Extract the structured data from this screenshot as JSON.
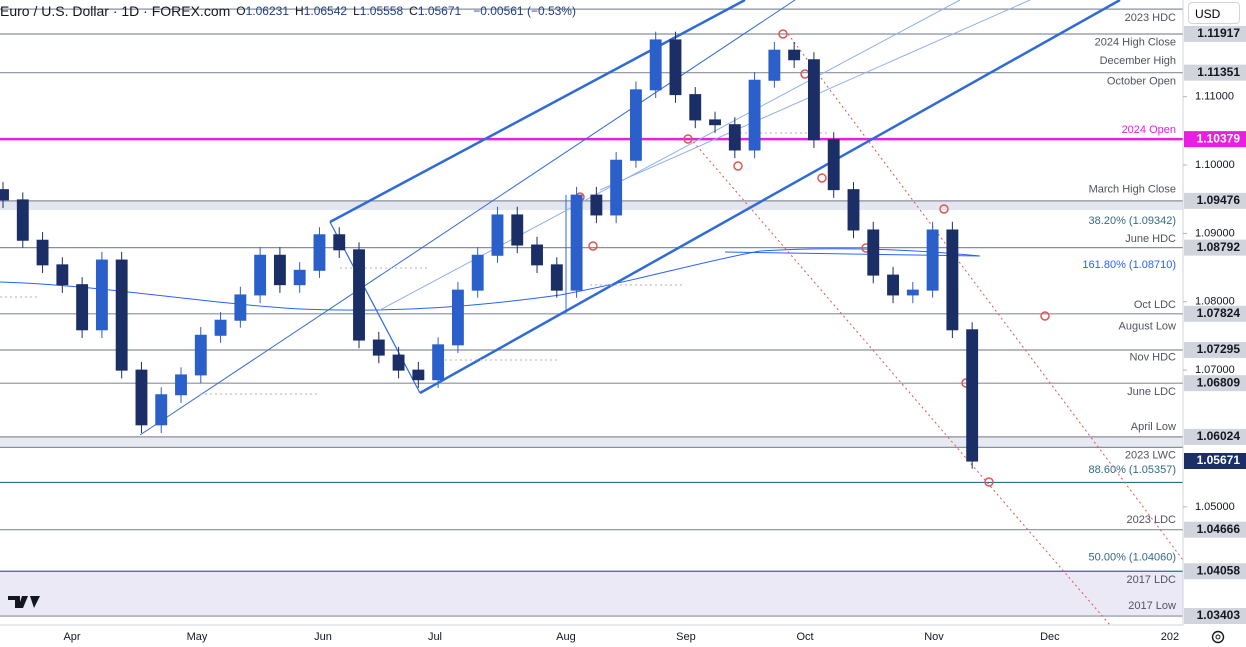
{
  "chart_data": {
    "type": "candlestick",
    "header": {
      "symbol": "Euro / U.S. Dollar · 1D · FOREX.com",
      "ohlc": [
        {
          "label": "O",
          "value": 1.06231
        },
        {
          "label": "H",
          "value": 1.06542
        },
        {
          "label": "L",
          "value": 1.05558
        },
        {
          "label": "C",
          "value": 1.05671
        }
      ],
      "change": "−0.00561 (−0.53%)",
      "currency": "USD"
    },
    "up_color": "#2b5fc9",
    "down_color": "#1b2e66",
    "ohlc": [
      [
        1.0964,
        1.0975,
        1.0937,
        1.0949
      ],
      [
        1.0949,
        1.096,
        1.0879,
        1.089
      ],
      [
        1.089,
        1.0902,
        1.0842,
        1.0854
      ],
      [
        1.0854,
        1.0865,
        1.0813,
        1.0825
      ],
      [
        1.0825,
        1.0836,
        1.0747,
        1.0759
      ],
      [
        1.0759,
        1.0873,
        1.0747,
        1.0861
      ],
      [
        1.0861,
        1.0873,
        1.0688,
        1.07
      ],
      [
        1.07,
        1.0712,
        1.0608,
        1.062
      ],
      [
        1.062,
        1.0675,
        1.0608,
        1.0664
      ],
      [
        1.0664,
        1.0704,
        1.0652,
        1.0693
      ],
      [
        1.0693,
        1.0763,
        1.0681,
        1.0751
      ],
      [
        1.0751,
        1.0785,
        1.074,
        1.0773
      ],
      [
        1.0773,
        1.0822,
        1.0762,
        1.081
      ],
      [
        1.081,
        1.088,
        1.0798,
        1.0868
      ],
      [
        1.0868,
        1.088,
        1.0813,
        1.0825
      ],
      [
        1.0825,
        1.0858,
        1.0813,
        1.0846
      ],
      [
        1.0846,
        1.0909,
        1.0835,
        1.0898
      ],
      [
        1.0898,
        1.0909,
        1.0864,
        1.0876
      ],
      [
        1.0876,
        1.0887,
        1.0732,
        1.0744
      ],
      [
        1.0744,
        1.0756,
        1.071,
        1.0722
      ],
      [
        1.0722,
        1.0734,
        1.0688,
        1.07
      ],
      [
        1.07,
        1.0712,
        1.0674,
        1.0686
      ],
      [
        1.0686,
        1.0748,
        1.0674,
        1.0737
      ],
      [
        1.0737,
        1.0829,
        1.0725,
        1.0817
      ],
      [
        1.0817,
        1.088,
        1.0806,
        1.0868
      ],
      [
        1.0868,
        1.0939,
        1.0857,
        1.0927
      ],
      [
        1.0927,
        1.0939,
        1.0871,
        1.0883
      ],
      [
        1.0883,
        1.0895,
        1.0842,
        1.0854
      ],
      [
        1.0854,
        1.0865,
        1.0806,
        1.0817
      ],
      [
        1.0817,
        1.0968,
        1.0806,
        1.0956
      ],
      [
        1.0956,
        1.0968,
        1.0915,
        1.0927
      ],
      [
        1.0927,
        1.1019,
        1.0915,
        1.1007
      ],
      [
        1.1007,
        1.1122,
        1.0996,
        1.111
      ],
      [
        1.111,
        1.1195,
        1.1098,
        1.1183
      ],
      [
        1.1183,
        1.1195,
        1.1091,
        1.1103
      ],
      [
        1.1103,
        1.1114,
        1.1054,
        1.1066
      ],
      [
        1.1066,
        1.1078,
        1.1047,
        1.1059
      ],
      [
        1.1059,
        1.107,
        1.101,
        1.1022
      ],
      [
        1.1022,
        1.1136,
        1.101,
        1.1124
      ],
      [
        1.1124,
        1.118,
        1.1113,
        1.1168
      ],
      [
        1.1168,
        1.118,
        1.1142,
        1.1154
      ],
      [
        1.1154,
        1.1165,
        1.1025,
        1.1037
      ],
      [
        1.1037,
        1.1048,
        1.0952,
        1.0964
      ],
      [
        1.0964,
        1.0975,
        1.0893,
        1.0905
      ],
      [
        1.0905,
        1.0917,
        1.0827,
        1.0839
      ],
      [
        1.0839,
        1.0851,
        1.0798,
        1.081
      ],
      [
        1.081,
        1.0829,
        1.0798,
        1.0817
      ],
      [
        1.0817,
        1.0917,
        1.0806,
        1.0905
      ],
      [
        1.0905,
        1.0917,
        1.0747,
        1.0759
      ],
      [
        1.0759,
        1.077,
        1.0556,
        1.0567
      ]
    ],
    "xlim": [
      -0.152,
      59.66
    ],
    "xticks": [
      {
        "value": 3.49,
        "label": "Apr"
      },
      {
        "value": 9.81,
        "label": "May"
      },
      {
        "value": 16.18,
        "label": "Jun"
      },
      {
        "value": 21.84,
        "label": "Jul"
      },
      {
        "value": 28.46,
        "label": "Aug"
      },
      {
        "value": 34.53,
        "label": "Sep"
      },
      {
        "value": 40.55,
        "label": "Oct"
      },
      {
        "value": 47.07,
        "label": "Nov"
      },
      {
        "value": 52.93,
        "label": "Dec"
      },
      {
        "value": 59.0,
        "label": "202"
      }
    ],
    "ylim": [
      1.03272,
      1.12414
    ],
    "yticks": [
      {
        "value": 1.11,
        "label": "1.11000"
      },
      {
        "value": 1.1,
        "label": "1.10000"
      },
      {
        "value": 1.09,
        "label": "1.09000"
      },
      {
        "value": 1.08,
        "label": "1.08000"
      },
      {
        "value": 1.07,
        "label": "1.07000"
      },
      {
        "value": 1.05,
        "label": "1.05000"
      }
    ],
    "price_labels": [
      {
        "value": 1.11917,
        "label": "1.11917",
        "color": "#8a8f9c"
      },
      {
        "value": 1.11351,
        "label": "1.11351",
        "color": "#8a8f9c"
      },
      {
        "value": 1.10379,
        "label": "1.10379",
        "color": "#e91ee0"
      },
      {
        "value": 1.09476,
        "label": "1.09476",
        "color": "#8a8f9c"
      },
      {
        "value": 1.08792,
        "label": "1.08792",
        "color": "#8a8f9c"
      },
      {
        "value": 1.07824,
        "label": "1.07824",
        "color": "#8a8f9c"
      },
      {
        "value": 1.07295,
        "label": "1.07295",
        "color": "#8a8f9c"
      },
      {
        "value": 1.06809,
        "label": "1.06809",
        "color": "#8a8f9c"
      },
      {
        "value": 1.06024,
        "label": "1.06024",
        "color": "#8a8f9c"
      },
      {
        "value": 1.05671,
        "label": "1.05671",
        "color": "#1b2e66"
      },
      {
        "value": 1.04666,
        "label": "1.04666",
        "color": "#8a8f9c"
      },
      {
        "value": 1.04058,
        "label": "1.04058",
        "color": "#336b87"
      },
      {
        "value": 1.03403,
        "label": "1.03403",
        "color": "#8a8f9c"
      }
    ],
    "extra_lines": [
      {
        "value": 1.1228,
        "color": "#8a8f9c"
      },
      {
        "value": 1.0587,
        "color": "#8a8f9c"
      },
      {
        "value": 1.05357,
        "color": "#336b87"
      }
    ],
    "bands": [
      {
        "from": 1.09342,
        "to": 1.09476,
        "color": "#e3e6ef"
      },
      {
        "from": 1.0587,
        "to": 1.06024,
        "color": "#e8eaf2"
      },
      {
        "from": 1.03403,
        "to": 1.04058,
        "color": "#ece9f7"
      }
    ],
    "annotations": [
      {
        "text": "2023 HDC",
        "value": 1.1215
      },
      {
        "text": "2024 High Close",
        "value": 1.1179
      },
      {
        "text": "December High",
        "value": 1.1152
      },
      {
        "text": "October Open",
        "value": 1.1122
      },
      {
        "text": "2024 Open",
        "value": 1.1051,
        "color": "#e91ee0"
      },
      {
        "text": "March High Close",
        "value": 1.0964
      },
      {
        "text": "38.20% (1.09342)",
        "value": 1.0918,
        "color": "#336b87"
      },
      {
        "text": "June HDC",
        "value": 1.0892
      },
      {
        "text": "161.80% (1.08710)",
        "value": 1.0854,
        "color": "#2962ff"
      },
      {
        "text": "Oct LDC",
        "value": 1.0795
      },
      {
        "text": "August Low",
        "value": 1.0764
      },
      {
        "text": "Nov HDC",
        "value": 1.0718
      },
      {
        "text": "June LDC",
        "value": 1.0668
      },
      {
        "text": "April Low",
        "value": 1.0617
      },
      {
        "text": "2023 LWC",
        "value": 1.0575
      },
      {
        "text": "88.60% (1.05357)",
        "value": 1.0554,
        "color": "#336b87"
      },
      {
        "text": "2023 LDC",
        "value": 1.0481
      },
      {
        "text": "50.00% (1.04060)",
        "value": 1.0426,
        "color": "#336b87"
      },
      {
        "text": "2017 LDC",
        "value": 1.0393
      },
      {
        "text": "2017 Low",
        "value": 1.0355
      }
    ]
  }
}
